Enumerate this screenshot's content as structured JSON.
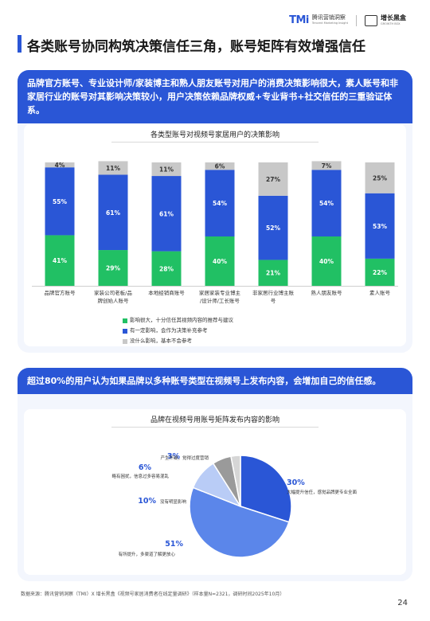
{
  "header": {
    "tmi_mark": "TMi",
    "tmi_name": "腾讯营销洞察",
    "tmi_en": "Tencent Marketing Insight",
    "growth_name": "增长黑盒",
    "growth_en": "GROWTH BOX"
  },
  "page_title": "各类账号协同构筑决策信任三角，账号矩阵有效增强信任",
  "section1": {
    "banner": "品牌官方账号、专业设计师/家装博主和熟人朋友账号对用户的消费决策影响很大，素人账号和非家居行业的账号对其影响决策较小，用户决策依赖品牌权威+专业背书+社交信任的三重验证体系。"
  },
  "section2": {
    "banner": "超过80%的用户认为如果品牌以多种账号类型在视频号上发布内容，会增加自己的信任感。"
  },
  "colors": {
    "green": "#21c064",
    "blue": "#2a56d6",
    "gray": "#c8c8c8",
    "pie_blue": "#2a56d6",
    "pie_mid": "#5b86ea",
    "pie_light": "#b9ccf6",
    "pie_gray": "#9a9a9a",
    "pie_lgray": "#d6d6d6"
  },
  "chart_data": [
    {
      "type": "bar",
      "stacked": true,
      "title": "各类型账号对视频号家居用户的决策影响",
      "categories": [
        "品牌官方账号",
        "家装公司老板/品牌创始人账号",
        "本地经销商账号",
        "家居家装专业博主/设计师/工长账号",
        "非家居行业博主账号",
        "熟人朋友账号",
        "素人账号"
      ],
      "category_lines": [
        [
          "品牌官方账号"
        ],
        [
          "家装公司老板/品",
          "牌创始人账号"
        ],
        [
          "本地经销商账号"
        ],
        [
          "家居家装专业博主",
          "/设计师/工长账号"
        ],
        [
          "非家居行业博主账",
          "号"
        ],
        [
          "熟人朋友账号"
        ],
        [
          "素人账号"
        ]
      ],
      "series": [
        {
          "name": "影响很大，十分信任其视频内容的推荐与建议",
          "color": "#21c064",
          "values": [
            41,
            29,
            28,
            40,
            21,
            40,
            22
          ]
        },
        {
          "name": "有一定影响，会作为决策补充参考",
          "color": "#2a56d6",
          "values": [
            55,
            61,
            61,
            54,
            52,
            54,
            53
          ]
        },
        {
          "name": "没什么影响，基本不会参考",
          "color": "#c8c8c8",
          "values": [
            4,
            11,
            11,
            6,
            27,
            7,
            25
          ]
        }
      ],
      "value_labels": [
        [
          "41%",
          "29%",
          "28%",
          "40%",
          "21%",
          "40%",
          "22%"
        ],
        [
          "55%",
          "61%",
          "61%",
          "54%",
          "52%",
          "54%",
          "53%"
        ],
        [
          "4%",
          "11%",
          "11%",
          "6%",
          "27%",
          "7%",
          "25%"
        ]
      ],
      "ylim": [
        0,
        100
      ],
      "legend_position": "bottom"
    },
    {
      "type": "pie",
      "title": "品牌在视频号用账号矩阵发布内容的影响",
      "slices": [
        {
          "pct": "30%",
          "value": 30,
          "label": "大幅提升信任，感觉品牌更专业全面",
          "color": "#2a56d6"
        },
        {
          "pct": "51%",
          "value": 51,
          "label": "有所提升，多渠道了解更放心",
          "color": "#5b86ea"
        },
        {
          "pct": "10%",
          "value": 10,
          "label": "没有明显影响",
          "color": "#b9ccf6"
        },
        {
          "pct": "6%",
          "value": 6,
          "label": "略有困扰，信息过多容易混乱",
          "color": "#9a9a9a"
        },
        {
          "pct": "3%",
          "value": 3,
          "label": "产生怀疑，觉得过度营销",
          "color": "#d6d6d6"
        }
      ]
    }
  ],
  "footer": {
    "source": "数据来源：腾讯营销洞察（TMI）X 增长黑盒《视频号家居消费者在线定量调研》（样本量N=2321，调研时间2025年10月）",
    "page_number": "24"
  }
}
